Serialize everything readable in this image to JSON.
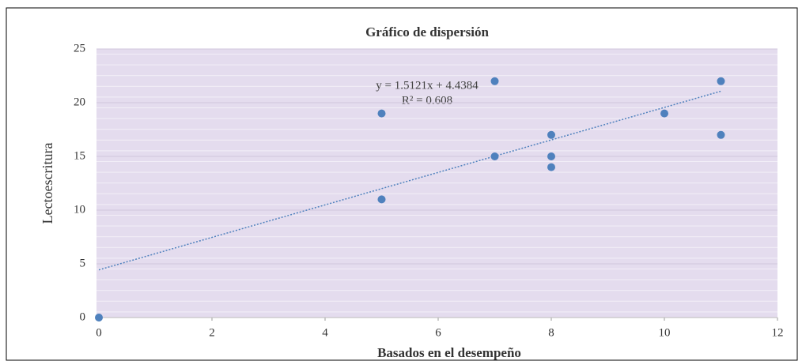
{
  "chart_data": {
    "type": "scatter",
    "title": "Gráfico de dispersión",
    "x_label": "Basados en el desempeño",
    "y_label": "Lectoescritura",
    "x": [
      0,
      5,
      5,
      7,
      7,
      8,
      8,
      8,
      10,
      11,
      11
    ],
    "y": [
      0,
      19,
      11,
      22,
      15,
      17,
      15,
      14,
      19,
      22,
      17
    ],
    "color": "#4f81bd",
    "xlim": [
      0,
      12
    ],
    "xticks": [
      0,
      2,
      4,
      6,
      8,
      10,
      12
    ],
    "ylim": [
      0,
      25
    ],
    "yticks": [
      0,
      5,
      10,
      15,
      20,
      25
    ],
    "grid": true,
    "trendline": {
      "slope": 1.5121,
      "intercept": 4.4384,
      "equation": "y = 1.5121x + 4.4384",
      "r2": "R² = 0.608"
    }
  }
}
